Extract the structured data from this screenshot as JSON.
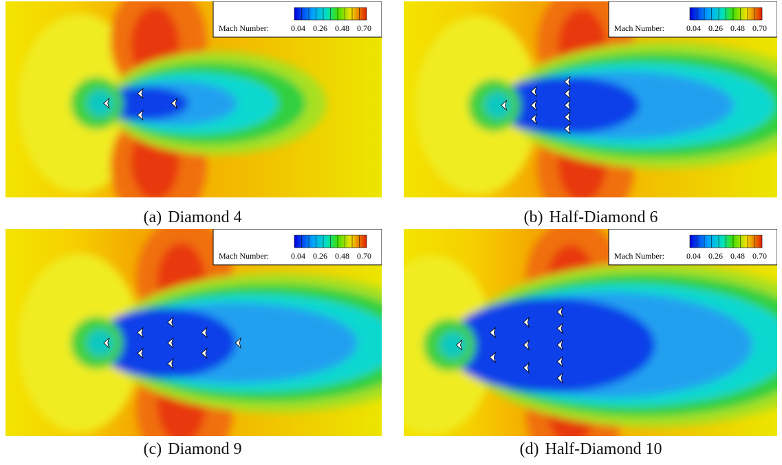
{
  "figure": {
    "panels": [
      {
        "label": "(a)",
        "name": "Diamond 4"
      },
      {
        "label": "(b)",
        "name": "Half-Diamond 6"
      },
      {
        "label": "(c)",
        "name": "Diamond 9"
      },
      {
        "label": "(d)",
        "name": "Half-Diamond 10"
      }
    ],
    "legend": {
      "label": "Mach Number:",
      "ticks": [
        "0.04",
        "0.26",
        "0.48",
        "0.70"
      ]
    }
  }
}
